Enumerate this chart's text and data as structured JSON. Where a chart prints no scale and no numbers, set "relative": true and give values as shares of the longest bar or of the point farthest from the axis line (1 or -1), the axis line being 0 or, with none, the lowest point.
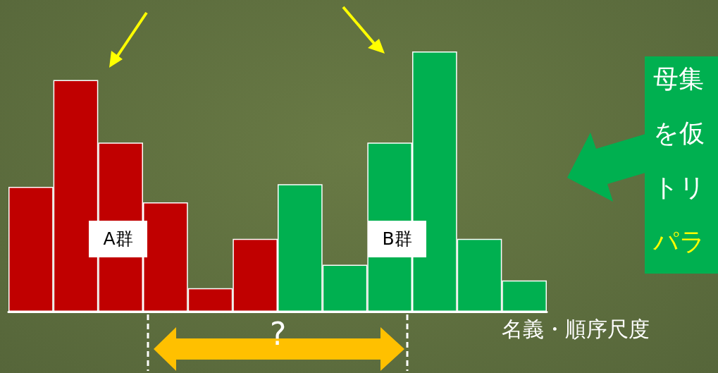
{
  "chart_data": {
    "type": "bar",
    "relative": true,
    "categories": [
      null,
      null,
      null,
      null,
      null,
      null,
      null,
      null,
      null,
      null,
      null,
      null
    ],
    "values": [
      0.48,
      0.89,
      0.65,
      0.42,
      0.09,
      0.28,
      0.49,
      0.18,
      0.65,
      1,
      0.28,
      0.12
    ],
    "colors": [
      "#c00000",
      "#c00000",
      "#c00000",
      "#c00000",
      "#c00000",
      "#c00000",
      "#00b050",
      "#00b050",
      "#00b050",
      "#00b050",
      "#00b050",
      "#00b050"
    ],
    "annotations": [
      "A群",
      "B群",
      "?",
      "母集",
      "を仮",
      "トリ",
      "パラ",
      "名義・順序尺度"
    ]
  }
}
